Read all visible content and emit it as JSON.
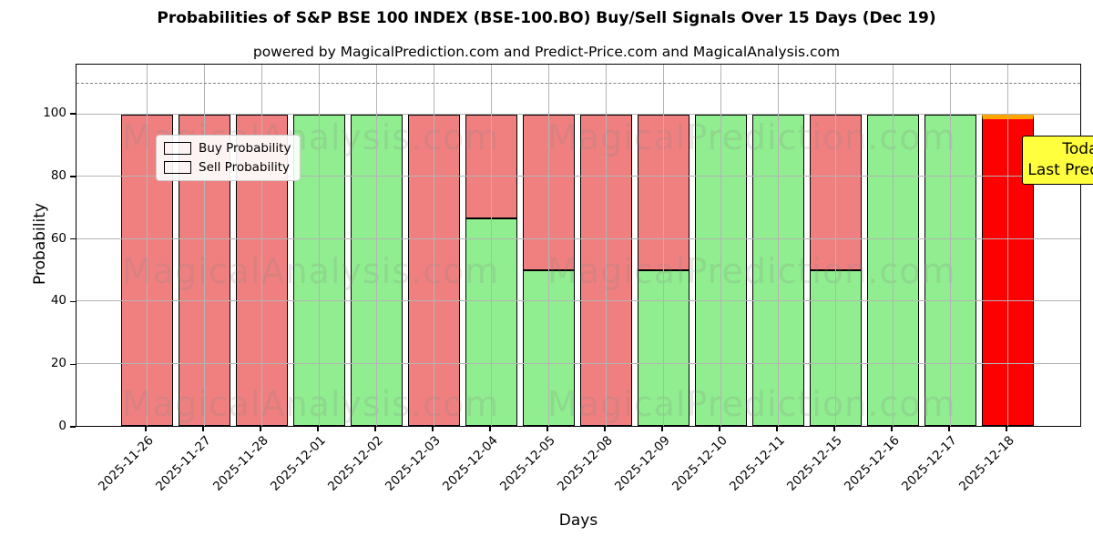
{
  "title": "Probabilities of S&P BSE 100 INDEX (BSE-100.BO) Buy/Sell Signals Over 15 Days (Dec 19)",
  "subtitle": "powered by MagicalPrediction.com and Predict-Price.com and MagicalAnalysis.com",
  "legend": {
    "buy_label": "Buy Probability",
    "sell_label": "Sell Probability"
  },
  "annotation": {
    "line1": "Today",
    "line2": "Last Prediction"
  },
  "watermarks": {
    "left": "MagicalAnalysis.com",
    "right": "MagicalPrediction.com"
  },
  "colors": {
    "buy": "#90EE90",
    "sell": "#F08080",
    "today_bar": "#FF0000",
    "today_edge": "#FFA500",
    "annotation_bg": "#FFFF3D",
    "grid": "#B4B4B4",
    "dashed": "#7F7F7F"
  },
  "chart_data": {
    "type": "bar",
    "stacked": true,
    "title": "Probabilities of S&P BSE 100 INDEX (BSE-100.BO) Buy/Sell Signals Over 15 Days (Dec 19)",
    "xlabel": "Days",
    "ylabel": "Probability",
    "categories": [
      "2025-11-26",
      "2025-11-27",
      "2025-11-28",
      "2025-12-01",
      "2025-12-02",
      "2025-12-03",
      "2025-12-04",
      "2025-12-05",
      "2025-12-08",
      "2025-12-09",
      "2025-12-10",
      "2025-12-11",
      "2025-12-15",
      "2025-12-16",
      "2025-12-17",
      "2025-12-18"
    ],
    "series": [
      {
        "name": "Buy Probability",
        "color": "#90EE90",
        "values": [
          0,
          0,
          0,
          100,
          100,
          0,
          66.7,
          50,
          0,
          50,
          100,
          100,
          50,
          100,
          100,
          0
        ]
      },
      {
        "name": "Sell Probability",
        "color": "#F08080",
        "values": [
          100,
          100,
          100,
          0,
          0,
          100,
          33.3,
          50,
          100,
          50,
          0,
          0,
          50,
          0,
          0,
          100
        ]
      }
    ],
    "today_index": 15,
    "yticks": [
      0,
      20,
      40,
      60,
      80,
      100
    ],
    "ylim": [
      0,
      116
    ],
    "dashed_line_y": 110,
    "grid": true,
    "legend_position": "upper left"
  }
}
